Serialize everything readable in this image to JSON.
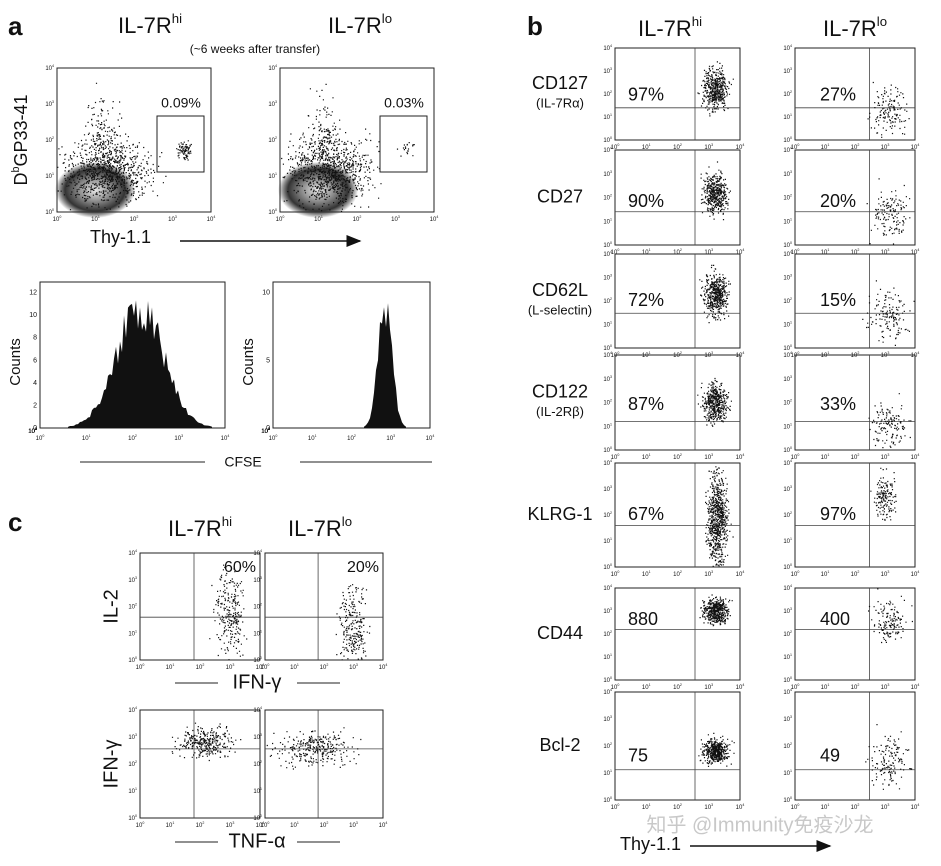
{
  "panel_a": {
    "label": "a",
    "columns": [
      {
        "name": "IL-7R",
        "sup": "hi"
      },
      {
        "name": "IL-7R",
        "sup": "lo"
      }
    ],
    "subtitle": "(~6 weeks after transfer)",
    "y_label": {
      "base": "D",
      "sup": "b",
      "rest": "GP33-41"
    },
    "x_label": "Thy-1.1",
    "gates": [
      "0.09%",
      "0.03%"
    ],
    "tick_base": "10",
    "tick_exponents": [
      "0",
      "1",
      "2",
      "3",
      "4"
    ],
    "histogram_y_label": "Counts",
    "histogram_yticks": [
      [
        0,
        2,
        4,
        6,
        8,
        10,
        12
      ],
      [
        0,
        5,
        10
      ]
    ],
    "histogram_x_label": "CFSE"
  },
  "panel_b": {
    "label": "b",
    "columns": [
      {
        "name": "IL-7R",
        "sup": "hi"
      },
      {
        "name": "IL-7R",
        "sup": "lo"
      }
    ],
    "rows": [
      {
        "name": "CD127",
        "sub": "(IL-7Rα)",
        "values": [
          "97%",
          "27%"
        ]
      },
      {
        "name": "CD27",
        "values": [
          "90%",
          "20%"
        ]
      },
      {
        "name": "CD62L",
        "sub": "(L-selectin)",
        "values": [
          "72%",
          "15%"
        ]
      },
      {
        "name": "CD122",
        "sub": "(IL-2Rβ)",
        "values": [
          "87%",
          "33%"
        ]
      },
      {
        "name": "KLRG-1",
        "values": [
          "67%",
          "97%"
        ]
      },
      {
        "name": "CD44",
        "values": [
          "880",
          "400"
        ]
      },
      {
        "name": "Bcl-2",
        "values": [
          "75",
          "49"
        ]
      }
    ],
    "x_label": "Thy-1.1"
  },
  "panel_c": {
    "label": "c",
    "columns": [
      {
        "name": "IL-7R",
        "sup": "hi"
      },
      {
        "name": "IL-7R",
        "sup": "lo"
      }
    ],
    "rows": [
      {
        "y_label": "IL-2",
        "x_label": "IFN-γ",
        "values": [
          "60%",
          "20%"
        ]
      },
      {
        "y_label": "IFN-γ",
        "x_label": "TNF-α"
      }
    ]
  },
  "watermark": "知乎 @Immunity免疫沙龙"
}
